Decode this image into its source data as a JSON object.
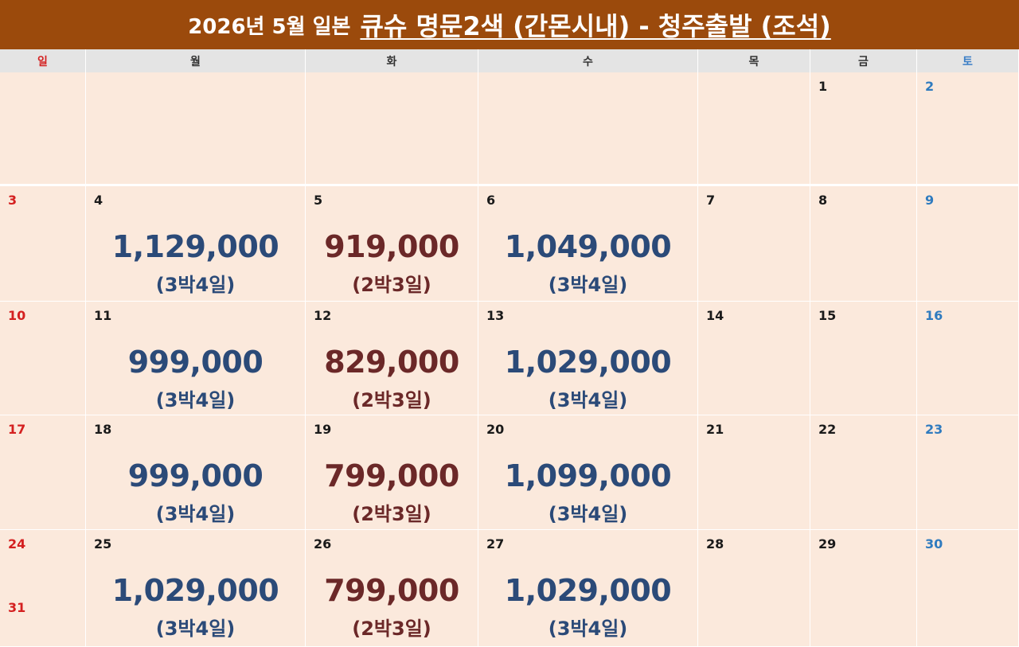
{
  "banner": {
    "prefix": "2026년 5월 일본",
    "title": "큐슈 명문2색 (간몬시내) - 청주출발 (조석)",
    "color": "#9b4a0c"
  },
  "weekdays": [
    "일",
    "월",
    "화",
    "수",
    "목",
    "금",
    "토"
  ],
  "colors": {
    "sunday": "#d42020",
    "saturday": "#2f7bbf",
    "price_blue": "#2b4a78",
    "price_brown": "#6b2828",
    "cell_bg": "#fbe9dc"
  },
  "weeks": [
    [
      {
        "day": "",
        "price": "",
        "duration": ""
      },
      {
        "day": "",
        "price": "",
        "duration": ""
      },
      {
        "day": "",
        "price": "",
        "duration": ""
      },
      {
        "day": "",
        "price": "",
        "duration": ""
      },
      {
        "day": "",
        "price": "",
        "duration": ""
      },
      {
        "day": "1",
        "price": "",
        "duration": ""
      },
      {
        "day": "2",
        "price": "",
        "duration": ""
      }
    ],
    [
      {
        "day": "3",
        "price": "",
        "duration": ""
      },
      {
        "day": "4",
        "price": "1,129,000",
        "duration": "(3박4일)"
      },
      {
        "day": "5",
        "price": "919,000",
        "duration": "(2박3일)"
      },
      {
        "day": "6",
        "price": "1,049,000",
        "duration": "(3박4일)"
      },
      {
        "day": "7",
        "price": "",
        "duration": ""
      },
      {
        "day": "8",
        "price": "",
        "duration": ""
      },
      {
        "day": "9",
        "price": "",
        "duration": ""
      }
    ],
    [
      {
        "day": "10",
        "price": "",
        "duration": ""
      },
      {
        "day": "11",
        "price": "999,000",
        "duration": "(3박4일)"
      },
      {
        "day": "12",
        "price": "829,000",
        "duration": "(2박3일)"
      },
      {
        "day": "13",
        "price": "1,029,000",
        "duration": "(3박4일)"
      },
      {
        "day": "14",
        "price": "",
        "duration": ""
      },
      {
        "day": "15",
        "price": "",
        "duration": ""
      },
      {
        "day": "16",
        "price": "",
        "duration": ""
      }
    ],
    [
      {
        "day": "17",
        "price": "",
        "duration": ""
      },
      {
        "day": "18",
        "price": "999,000",
        "duration": "(3박4일)"
      },
      {
        "day": "19",
        "price": "799,000",
        "duration": "(2박3일)"
      },
      {
        "day": "20",
        "price": "1,099,000",
        "duration": "(3박4일)"
      },
      {
        "day": "21",
        "price": "",
        "duration": ""
      },
      {
        "day": "22",
        "price": "",
        "duration": ""
      },
      {
        "day": "23",
        "price": "",
        "duration": ""
      }
    ],
    [
      {
        "day": "24",
        "extra_day": "31",
        "price": "",
        "duration": ""
      },
      {
        "day": "25",
        "price": "1,029,000",
        "duration": "(3박4일)"
      },
      {
        "day": "26",
        "price": "799,000",
        "duration": "(2박3일)"
      },
      {
        "day": "27",
        "price": "1,029,000",
        "duration": "(3박4일)"
      },
      {
        "day": "28",
        "price": "",
        "duration": ""
      },
      {
        "day": "29",
        "price": "",
        "duration": ""
      },
      {
        "day": "30",
        "price": "",
        "duration": ""
      }
    ]
  ]
}
